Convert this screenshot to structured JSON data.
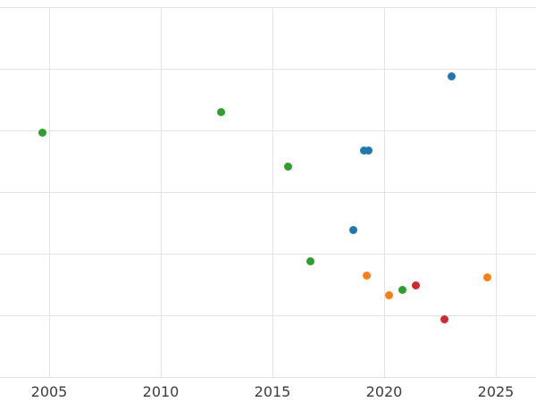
{
  "figure": {
    "background": "#ffffff",
    "grid_color": "#e3e3e3",
    "tick_label_color": "#3c3c3c"
  },
  "chart_data": {
    "type": "scatter",
    "title": "",
    "xlabel": "",
    "ylabel": "",
    "grid": true,
    "legend_position": "none",
    "x_tick_labels": [
      "2005",
      "2010",
      "2015",
      "2020",
      "2025"
    ],
    "x_tick_values": [
      2005,
      2010,
      2015,
      2020,
      2025
    ],
    "xlim": [
      2002.8,
      2026.8
    ],
    "ylim": [
      0,
      6
    ],
    "y_gridline_values": [
      0,
      1,
      2,
      3,
      4,
      5,
      6
    ],
    "y_axis_labels_visible": false,
    "series": [
      {
        "name": "green-series",
        "color": "#2ca02c",
        "points": [
          {
            "x": 2004.7,
            "y": 3.97
          },
          {
            "x": 2012.7,
            "y": 4.29
          },
          {
            "x": 2015.7,
            "y": 3.41
          },
          {
            "x": 2016.7,
            "y": 1.87
          },
          {
            "x": 2020.8,
            "y": 1.42
          }
        ]
      },
      {
        "name": "blue-series",
        "color": "#1f77b4",
        "points": [
          {
            "x": 2018.6,
            "y": 2.39
          },
          {
            "x": 2019.1,
            "y": 3.68
          },
          {
            "x": 2019.3,
            "y": 3.68
          },
          {
            "x": 2023.0,
            "y": 4.87
          }
        ]
      },
      {
        "name": "orange-series",
        "color": "#ff7f0e",
        "points": [
          {
            "x": 2019.2,
            "y": 1.65
          },
          {
            "x": 2020.2,
            "y": 1.33
          },
          {
            "x": 2024.6,
            "y": 1.62
          }
        ]
      },
      {
        "name": "red-series",
        "color": "#d62728",
        "points": [
          {
            "x": 2021.4,
            "y": 1.48
          },
          {
            "x": 2022.7,
            "y": 0.93
          }
        ]
      }
    ]
  }
}
